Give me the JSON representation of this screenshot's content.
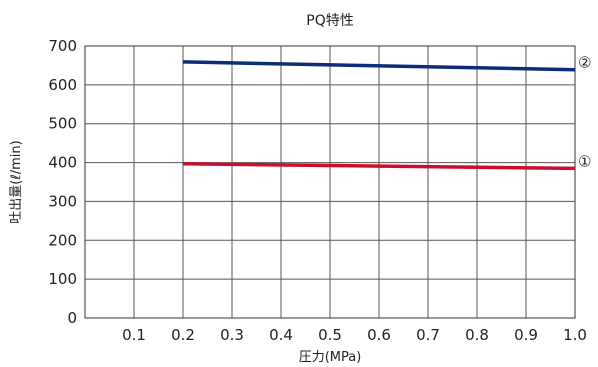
{
  "chart_data": {
    "type": "line",
    "title": "PQ特性",
    "xlabel": "圧力(MPa)",
    "ylabel": "吐出量(ℓ/min)",
    "xlim": [
      0,
      1.0
    ],
    "ylim": [
      0,
      700
    ],
    "x_ticks": [
      0.1,
      0.2,
      0.3,
      0.4,
      0.5,
      0.6,
      0.7,
      0.8,
      0.9,
      1.0
    ],
    "x_tick_labels": [
      "0.1",
      "0.2",
      "0.3",
      "0.4",
      "0.5",
      "0.6",
      "0.7",
      "0.8",
      "0.9",
      "1.0"
    ],
    "y_ticks": [
      0,
      100,
      200,
      300,
      400,
      500,
      600,
      700
    ],
    "y_tick_labels": [
      "0",
      "100",
      "200",
      "300",
      "400",
      "500",
      "600",
      "700"
    ],
    "grid": true,
    "series": [
      {
        "label": "①",
        "color": "#c8102e",
        "x": [
          0.2,
          1.0
        ],
        "y": [
          397,
          385
        ]
      },
      {
        "label": "②",
        "color": "#0d2c7a",
        "x": [
          0.2,
          1.0
        ],
        "y": [
          659,
          639
        ]
      }
    ]
  }
}
